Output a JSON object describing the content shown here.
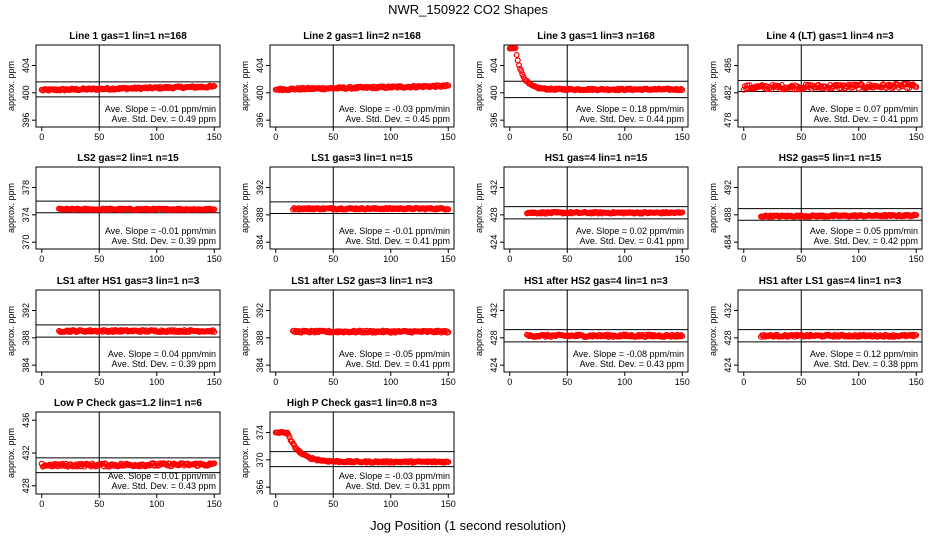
{
  "page": {
    "title": "NWR_150922  CO2 Shapes",
    "xlabel": "Jog Position (1 second resolution)"
  },
  "style": {
    "point_color": "#ff0000",
    "ref_line_color": "#000000"
  },
  "chart_data": [
    {
      "type": "scatter",
      "title": "Line 1 gas=1 lin=1 n=168",
      "ylabel": "approx. ppm",
      "xlim": [
        -5,
        155
      ],
      "ylim": [
        395,
        407
      ],
      "xticks": [
        0,
        50,
        100,
        150
      ],
      "yticks": [
        396,
        400,
        404
      ],
      "hlines": [
        399.4,
        401.6
      ],
      "vline": 50,
      "series": [
        {
          "x": [
            0,
            150
          ],
          "y": [
            400.4,
            400.9
          ],
          "noise": 0.15
        }
      ],
      "annotation": [
        "Ave. Slope = -0.01  ppm/min",
        "Ave. Std. Dev. = 0.49  ppm"
      ]
    },
    {
      "type": "scatter",
      "title": "Line 2 gas=1 lin=2 n=168",
      "ylabel": "approx. ppm",
      "xlim": [
        -5,
        155
      ],
      "ylim": [
        395,
        407
      ],
      "xticks": [
        0,
        50,
        100,
        150
      ],
      "yticks": [
        396,
        400,
        404
      ],
      "hlines": [],
      "vline": 50,
      "series": [
        {
          "x": [
            0,
            150
          ],
          "y": [
            400.5,
            401.0
          ],
          "noise": 0.15
        }
      ],
      "annotation": [
        "Ave. Slope = -0.03  ppm/min",
        "Ave. Std. Dev. = 0.45  ppm"
      ]
    },
    {
      "type": "scatter",
      "title": "Line 3 gas=1 lin=3 n=168",
      "ylabel": "approx. ppm",
      "xlim": [
        -5,
        155
      ],
      "ylim": [
        395,
        407
      ],
      "xticks": [
        0,
        50,
        100,
        150
      ],
      "yticks": [
        396,
        400,
        404
      ],
      "hlines": [
        399.3,
        401.7
      ],
      "vline": 50,
      "series": [
        {
          "x": [
            0,
            150
          ],
          "y": [
            406.5,
            400.5
          ],
          "decay": 6,
          "start": 5,
          "noise": 0.12
        }
      ],
      "annotation": [
        "Ave. Slope = 0.18  ppm/min",
        "Ave. Std. Dev. = 0.44  ppm"
      ]
    },
    {
      "type": "scatter",
      "title": "Line 4 (LT) gas=1 lin=4 n=3",
      "ylabel": "approx. ppm",
      "xlim": [
        -5,
        155
      ],
      "ylim": [
        477,
        489
      ],
      "xticks": [
        0,
        50,
        100,
        150
      ],
      "yticks": [
        478,
        482,
        486
      ],
      "hlines": [
        482.2,
        483.8
      ],
      "vline": 50,
      "series": [
        {
          "x": [
            0,
            150
          ],
          "y": [
            482.8,
            483.0
          ],
          "noise": 0.35
        }
      ],
      "annotation": [
        "Ave. Slope = 0.07  ppm/min",
        "Ave. Std. Dev. = 0.41  ppm"
      ]
    },
    {
      "type": "scatter",
      "title": "LS2 gas=2 lin=1 n=15",
      "ylabel": "approx. ppm",
      "xlim": [
        -5,
        155
      ],
      "ylim": [
        369,
        381
      ],
      "xticks": [
        0,
        50,
        100,
        150
      ],
      "yticks": [
        370,
        374,
        378
      ],
      "hlines": [
        374.3,
        376.0
      ],
      "vline": 50,
      "series": [
        {
          "x": [
            15,
            150
          ],
          "y": [
            374.8,
            374.8
          ],
          "noise": 0.12
        }
      ],
      "annotation": [
        "Ave. Slope = -0.01  ppm/min",
        "Ave. Std. Dev. = 0.39  ppm"
      ]
    },
    {
      "type": "scatter",
      "title": "LS1 gas=3 lin=1 n=15",
      "ylabel": "approx. ppm",
      "xlim": [
        -5,
        155
      ],
      "ylim": [
        383,
        395
      ],
      "xticks": [
        0,
        50,
        100,
        150
      ],
      "yticks": [
        384,
        388,
        392
      ],
      "hlines": [
        388.2,
        389.9
      ],
      "vline": 50,
      "series": [
        {
          "x": [
            15,
            150
          ],
          "y": [
            388.9,
            388.9
          ],
          "noise": 0.12
        }
      ],
      "annotation": [
        "Ave. Slope = -0.01  ppm/min",
        "Ave. Std. Dev. = 0.41  ppm"
      ]
    },
    {
      "type": "scatter",
      "title": "HS1 gas=4 lin=1 n=15",
      "ylabel": "approx. ppm",
      "xlim": [
        -5,
        155
      ],
      "ylim": [
        423,
        435
      ],
      "xticks": [
        0,
        50,
        100,
        150
      ],
      "yticks": [
        424,
        428,
        432
      ],
      "hlines": [
        427.4,
        429.2
      ],
      "vline": 50,
      "series": [
        {
          "x": [
            15,
            150
          ],
          "y": [
            428.3,
            428.3
          ],
          "noise": 0.12
        }
      ],
      "annotation": [
        "Ave. Slope = 0.02  ppm/min",
        "Ave. Std. Dev. = 0.41  ppm"
      ]
    },
    {
      "type": "scatter",
      "title": "HS2 gas=5 lin=1 n=15",
      "ylabel": "approx. ppm",
      "xlim": [
        -5,
        155
      ],
      "ylim": [
        483,
        495
      ],
      "xticks": [
        0,
        50,
        100,
        150
      ],
      "yticks": [
        484,
        488,
        492
      ],
      "hlines": [
        487.2,
        488.9
      ],
      "vline": 50,
      "series": [
        {
          "x": [
            15,
            150
          ],
          "y": [
            487.8,
            487.9
          ],
          "noise": 0.12
        }
      ],
      "annotation": [
        "Ave. Slope = 0.05  ppm/min",
        "Ave. Std. Dev. = 0.42  ppm"
      ]
    },
    {
      "type": "scatter",
      "title": "LS1 after HS1 gas=3 lin=1 n=3",
      "ylabel": "approx. ppm",
      "xlim": [
        -5,
        155
      ],
      "ylim": [
        383,
        395
      ],
      "xticks": [
        0,
        50,
        100,
        150
      ],
      "yticks": [
        384,
        388,
        392
      ],
      "hlines": [
        388.1,
        389.9
      ],
      "vline": 50,
      "series": [
        {
          "x": [
            15,
            150
          ],
          "y": [
            389.0,
            389.0
          ],
          "noise": 0.15
        }
      ],
      "annotation": [
        "Ave. Slope = 0.04  ppm/min",
        "Ave. Std. Dev. = 0.39  ppm"
      ]
    },
    {
      "type": "scatter",
      "title": "LS1 after LS2 gas=3 lin=1 n=3",
      "ylabel": "approx. ppm",
      "xlim": [
        -5,
        155
      ],
      "ylim": [
        383,
        395
      ],
      "xticks": [
        0,
        50,
        100,
        150
      ],
      "yticks": [
        384,
        388,
        392
      ],
      "hlines": [],
      "vline": 50,
      "series": [
        {
          "x": [
            15,
            150
          ],
          "y": [
            388.9,
            388.9
          ],
          "noise": 0.15
        }
      ],
      "annotation": [
        "Ave. Slope = -0.05  ppm/min",
        "Ave. Std. Dev. = 0.41  ppm"
      ]
    },
    {
      "type": "scatter",
      "title": "HS1 after HS2 gas=4 lin=1 n=3",
      "ylabel": "approx. ppm",
      "xlim": [
        -5,
        155
      ],
      "ylim": [
        423,
        435
      ],
      "xticks": [
        0,
        50,
        100,
        150
      ],
      "yticks": [
        424,
        428,
        432
      ],
      "hlines": [
        427.4,
        429.2
      ],
      "vline": 50,
      "series": [
        {
          "x": [
            15,
            150
          ],
          "y": [
            428.3,
            428.3
          ],
          "noise": 0.18
        }
      ],
      "annotation": [
        "Ave. Slope = -0.08  ppm/min",
        "Ave. Std. Dev. = 0.43  ppm"
      ]
    },
    {
      "type": "scatter",
      "title": "HS1 after LS1 gas=4 lin=1 n=3",
      "ylabel": "approx. ppm",
      "xlim": [
        -5,
        155
      ],
      "ylim": [
        423,
        435
      ],
      "xticks": [
        0,
        50,
        100,
        150
      ],
      "yticks": [
        424,
        428,
        432
      ],
      "hlines": [
        427.4,
        429.2
      ],
      "vline": 50,
      "series": [
        {
          "x": [
            15,
            150
          ],
          "y": [
            428.3,
            428.3
          ],
          "noise": 0.15
        }
      ],
      "annotation": [
        "Ave. Slope = 0.12  ppm/min",
        "Ave. Std. Dev. = 0.38  ppm"
      ]
    },
    {
      "type": "scatter",
      "title": "Low P Check gas=1.2 lin=1 n=6",
      "ylabel": "approx. ppm",
      "xlim": [
        -5,
        155
      ],
      "ylim": [
        427,
        437
      ],
      "xticks": [
        0,
        50,
        100,
        150
      ],
      "yticks": [
        428,
        432,
        436
      ],
      "hlines": [
        429.6,
        431.4
      ],
      "vline": 50,
      "series": [
        {
          "x": [
            0,
            150
          ],
          "y": [
            430.5,
            430.6
          ],
          "noise": 0.2
        }
      ],
      "annotation": [
        "Ave. Slope = 0.01  ppm/min",
        "Ave. Std. Dev. = 0.43  ppm"
      ]
    },
    {
      "type": "scatter",
      "title": "High P Check gas=1 lin=0.8 n=3",
      "ylabel": "approx. ppm",
      "xlim": [
        -5,
        155
      ],
      "ylim": [
        365,
        377
      ],
      "xticks": [
        0,
        50,
        100,
        150
      ],
      "yticks": [
        366,
        370,
        374
      ],
      "hlines": [
        369.0,
        371.2
      ],
      "vline": 50,
      "series": [
        {
          "x": [
            0,
            150
          ],
          "y": [
            374,
            369.7
          ],
          "decay": 10,
          "start": 10,
          "noise": 0.12
        }
      ],
      "annotation": [
        "Ave. Slope = -0.03  ppm/min",
        "Ave. Std. Dev. = 0.31  ppm"
      ]
    }
  ]
}
